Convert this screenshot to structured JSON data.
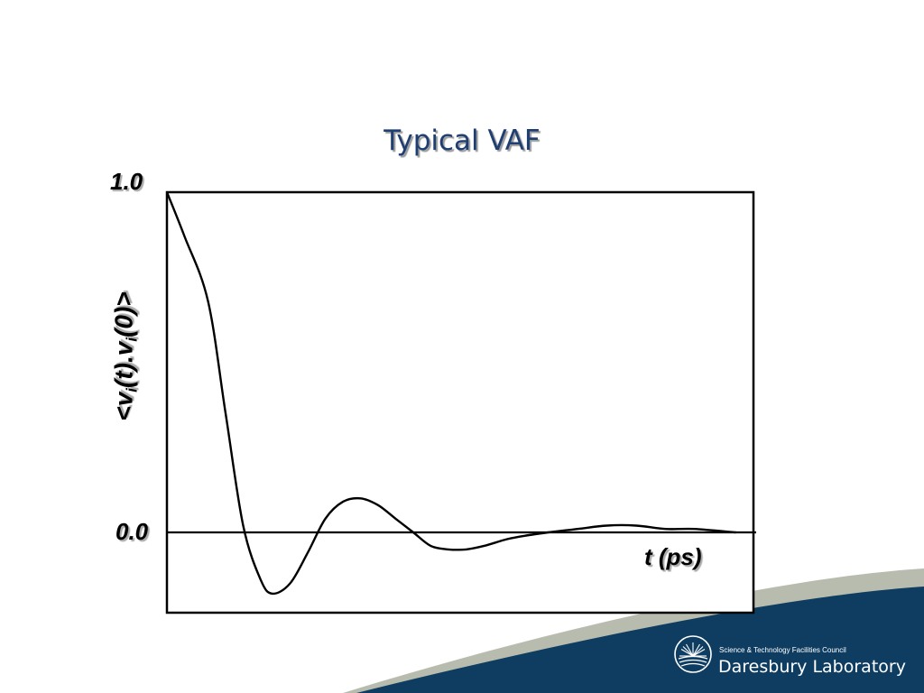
{
  "slide": {
    "title": "Typical VAF"
  },
  "chart_data": {
    "type": "line",
    "title": "Typical VAF",
    "xlabel": "t (ps)",
    "ylabel": {
      "main": "<v",
      "sub1": "i",
      "mid": "(t).v",
      "sub2": "i",
      "end": "(0)>"
    },
    "ytick_labels": [
      "1.0",
      "0.0"
    ],
    "xlim": [
      0,
      1
    ],
    "ylim": [
      -0.23,
      1.0
    ],
    "grid": false,
    "series": [
      {
        "x": [
          0.0,
          0.03,
          0.07,
          0.1,
          0.13,
          0.16,
          0.18,
          0.21,
          0.24,
          0.27,
          0.3,
          0.33,
          0.36,
          0.39,
          0.42,
          0.45,
          0.48,
          0.51,
          0.54,
          0.58,
          0.61,
          0.65,
          0.7,
          0.75,
          0.8,
          0.85,
          0.9,
          0.97
        ],
        "y": [
          1.0,
          0.87,
          0.68,
          0.35,
          0.02,
          -0.14,
          -0.18,
          -0.15,
          -0.06,
          0.04,
          0.09,
          0.1,
          0.08,
          0.04,
          0.0,
          -0.04,
          -0.05,
          -0.05,
          -0.04,
          -0.02,
          -0.01,
          0.0,
          0.01,
          0.02,
          0.02,
          0.01,
          0.01,
          0.0
        ]
      }
    ]
  },
  "branding": {
    "council": "Science & Technology Facilities Council",
    "lab": "Daresbury Laboratory"
  },
  "colors": {
    "title": "#1f3f73",
    "band_dark": "#0f3d61",
    "band_light": "#b7bcae",
    "line": "#000000"
  }
}
